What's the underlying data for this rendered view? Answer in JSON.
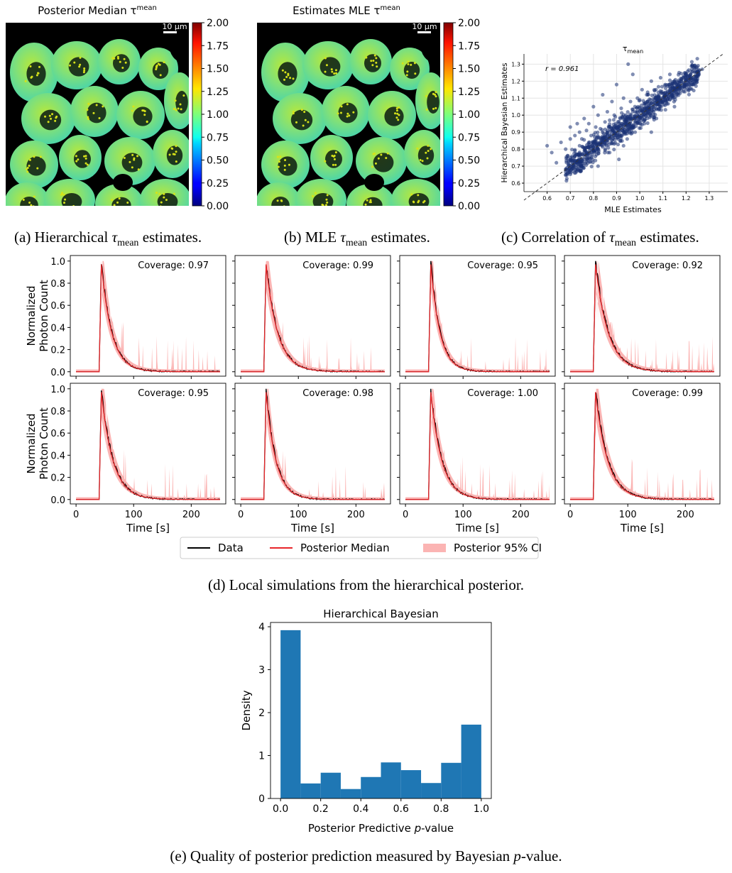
{
  "panel_a": {
    "title_prefix": "Posterior Median τ",
    "title_sup": "mean",
    "scalebar_label": "10 µm",
    "caption": {
      "prefix": "(a) Hierarchical ",
      "tau": "τ",
      "sub": "mean",
      "suffix": " estimates."
    }
  },
  "panel_b": {
    "title_prefix": "Estimates MLE τ",
    "title_sup": "mean",
    "scalebar_label": "10 µm",
    "caption": {
      "prefix": "(b) MLE ",
      "tau": "τ",
      "sub": "mean",
      "suffix": " estimates."
    }
  },
  "colorbar": {
    "ticks": [
      "0.00",
      "0.25",
      "0.50",
      "0.75",
      "1.00",
      "1.25",
      "1.50",
      "1.75",
      "2.00"
    ],
    "range": [
      0,
      2
    ],
    "colormap": "jet"
  },
  "panel_c": {
    "caption": {
      "prefix": "(c) Correlation of ",
      "tau": "τ",
      "sub": "mean",
      "suffix": " estimates."
    }
  },
  "panel_d": {
    "caption": "(d) Local simulations from the hierarchical posterior."
  },
  "panel_e": {
    "caption": {
      "prefix": "(e) Quality of posterior prediction measured by Bayesian ",
      "italic": "p",
      "suffix": "-value."
    }
  },
  "colors": {
    "data_line": "#000000",
    "median_line": "#e8262a",
    "ci_fill": "#fbb4b3",
    "scatter": "#1a3275",
    "histogram": "#1f77b4"
  },
  "chart_data": [
    {
      "id": "scatter",
      "type": "scatter",
      "title": "τ_mean",
      "title_main": "τ",
      "title_sub": "mean",
      "xlabel": "MLE Estimates",
      "ylabel": "Hierarchical Bayesian Estimates",
      "annotation": "r = 0.961",
      "r": 0.961,
      "xlim": [
        0.5,
        1.38
      ],
      "ylim": [
        0.55,
        1.36
      ],
      "xticks": [
        "0.6",
        "0.7",
        "0.8",
        "0.9",
        "1.0",
        "1.1",
        "1.2",
        "1.3"
      ],
      "yticks": [
        "0.6",
        "0.7",
        "0.8",
        "0.9",
        "1.0",
        "1.1",
        "1.2",
        "1.3"
      ],
      "reference_line": "y = x",
      "grid": true,
      "points": [
        [
          0.62,
          0.78
        ],
        [
          0.66,
          0.84
        ],
        [
          0.68,
          0.8
        ],
        [
          0.7,
          0.86
        ],
        [
          0.7,
          0.93
        ],
        [
          0.72,
          0.79
        ],
        [
          0.72,
          0.88
        ],
        [
          0.73,
          0.95
        ],
        [
          0.74,
          0.82
        ],
        [
          0.74,
          0.9
        ],
        [
          0.75,
          0.86
        ],
        [
          0.76,
          0.98
        ],
        [
          0.76,
          0.74
        ],
        [
          0.77,
          0.91
        ],
        [
          0.78,
          0.84
        ],
        [
          0.78,
          0.95
        ],
        [
          0.79,
          0.88
        ],
        [
          0.8,
          1.05
        ],
        [
          0.8,
          0.8
        ],
        [
          0.81,
          0.93
        ],
        [
          0.82,
          0.87
        ],
        [
          0.82,
          1.0
        ],
        [
          0.83,
          0.92
        ],
        [
          0.84,
          0.84
        ],
        [
          0.84,
          1.12
        ],
        [
          0.85,
          0.96
        ],
        [
          0.86,
          0.9
        ],
        [
          0.86,
          1.02
        ],
        [
          0.87,
          0.78
        ],
        [
          0.87,
          0.97
        ],
        [
          0.88,
          0.92
        ],
        [
          0.88,
          1.08
        ],
        [
          0.89,
          1.0
        ],
        [
          0.9,
          0.88
        ],
        [
          0.9,
          1.18
        ],
        [
          0.91,
          0.96
        ],
        [
          0.92,
          1.04
        ],
        [
          0.93,
          0.82
        ],
        [
          0.93,
          1.1
        ],
        [
          0.94,
          1.0
        ],
        [
          0.95,
          0.94
        ],
        [
          0.96,
          1.08
        ],
        [
          0.97,
          1.02
        ],
        [
          0.97,
          1.24
        ],
        [
          0.98,
          0.9
        ],
        [
          0.99,
          1.1
        ],
        [
          1.0,
          1.04
        ],
        [
          1.01,
          1.15
        ],
        [
          1.02,
          0.95
        ],
        [
          1.03,
          1.12
        ],
        [
          1.04,
          1.07
        ],
        [
          1.05,
          1.2
        ],
        [
          1.06,
          1.02
        ],
        [
          1.07,
          1.15
        ],
        [
          1.08,
          1.11
        ],
        [
          1.09,
          1.22
        ],
        [
          1.1,
          1.08
        ],
        [
          1.11,
          1.18
        ],
        [
          1.12,
          1.14
        ],
        [
          1.13,
          1.24
        ],
        [
          1.14,
          1.12
        ],
        [
          1.15,
          1.2
        ],
        [
          1.16,
          1.16
        ],
        [
          1.17,
          1.25
        ],
        [
          1.18,
          1.2
        ],
        [
          1.19,
          1.23
        ],
        [
          1.2,
          1.18
        ],
        [
          1.22,
          1.24
        ],
        [
          1.23,
          1.22
        ],
        [
          1.25,
          1.26
        ],
        [
          0.64,
          0.72
        ],
        [
          0.69,
          0.76
        ],
        [
          0.82,
          0.7
        ],
        [
          0.91,
          0.74
        ],
        [
          1.05,
          0.9
        ],
        [
          0.71,
          0.69
        ],
        [
          0.95,
          1.3
        ],
        [
          0.6,
          0.82
        ],
        [
          1.15,
          1.05
        ],
        [
          1.27,
          1.27
        ]
      ]
    },
    {
      "id": "traces",
      "type": "line",
      "xlabel": "Time [s]",
      "ylabel": "Normalized\nPhoton Count",
      "ylabel_lines": [
        "Normalized",
        "Photon Count"
      ],
      "xlim": [
        -10,
        260
      ],
      "ylim": [
        -0.04,
        1.05
      ],
      "xticks": [
        "0",
        "100",
        "200"
      ],
      "xtick_values": [
        0,
        100,
        200
      ],
      "yticks": [
        "0.0",
        "0.2",
        "0.4",
        "0.6",
        "0.8",
        "1.0"
      ],
      "ytick_values": [
        0,
        0.2,
        0.4,
        0.6,
        0.8,
        1.0
      ],
      "rise_time": 40,
      "peak_time": 44,
      "end_time": 250,
      "legend": {
        "position": "bottom-center",
        "entries": [
          {
            "label": "Data",
            "kind": "line",
            "color": "#000000"
          },
          {
            "label": "Posterior Median",
            "kind": "line",
            "color": "#e8262a"
          },
          {
            "label": "Posterior 95% CI",
            "kind": "patch",
            "color": "#fbb4b3"
          }
        ]
      },
      "panels": [
        {
          "coverage_text": "Coverage: 0.97",
          "coverage": 0.97,
          "decay_time": 18
        },
        {
          "coverage_text": "Coverage: 0.99",
          "coverage": 0.99,
          "decay_time": 20
        },
        {
          "coverage_text": "Coverage: 0.95",
          "coverage": 0.95,
          "decay_time": 16
        },
        {
          "coverage_text": "Coverage: 0.92",
          "coverage": 0.92,
          "decay_time": 22
        },
        {
          "coverage_text": "Coverage: 0.95",
          "coverage": 0.95,
          "decay_time": 20
        },
        {
          "coverage_text": "Coverage: 0.98",
          "coverage": 0.98,
          "decay_time": 17
        },
        {
          "coverage_text": "Coverage: 1.00",
          "coverage": 1.0,
          "decay_time": 19
        },
        {
          "coverage_text": "Coverage: 0.99",
          "coverage": 0.99,
          "decay_time": 21
        }
      ]
    },
    {
      "id": "histogram",
      "type": "bar",
      "title": "Hierarchical Bayesian",
      "xlabel_prefix": "Posterior Predictive ",
      "xlabel_italic": "p",
      "xlabel_suffix": "-value",
      "ylabel": "Density",
      "xlim": [
        -0.05,
        1.05
      ],
      "ylim": [
        0,
        4.1
      ],
      "xticks": [
        "0.0",
        "0.2",
        "0.4",
        "0.6",
        "0.8",
        "1.0"
      ],
      "xtick_values": [
        0,
        0.2,
        0.4,
        0.6,
        0.8,
        1.0
      ],
      "yticks": [
        "0",
        "1",
        "2",
        "3",
        "4"
      ],
      "ytick_values": [
        0,
        1,
        2,
        3,
        4
      ],
      "bin_edges": [
        0,
        0.1,
        0.2,
        0.3,
        0.4,
        0.5,
        0.6,
        0.7,
        0.8,
        0.9,
        1.0
      ],
      "values": [
        3.92,
        0.35,
        0.6,
        0.22,
        0.5,
        0.84,
        0.66,
        0.36,
        0.83,
        1.72
      ]
    }
  ]
}
